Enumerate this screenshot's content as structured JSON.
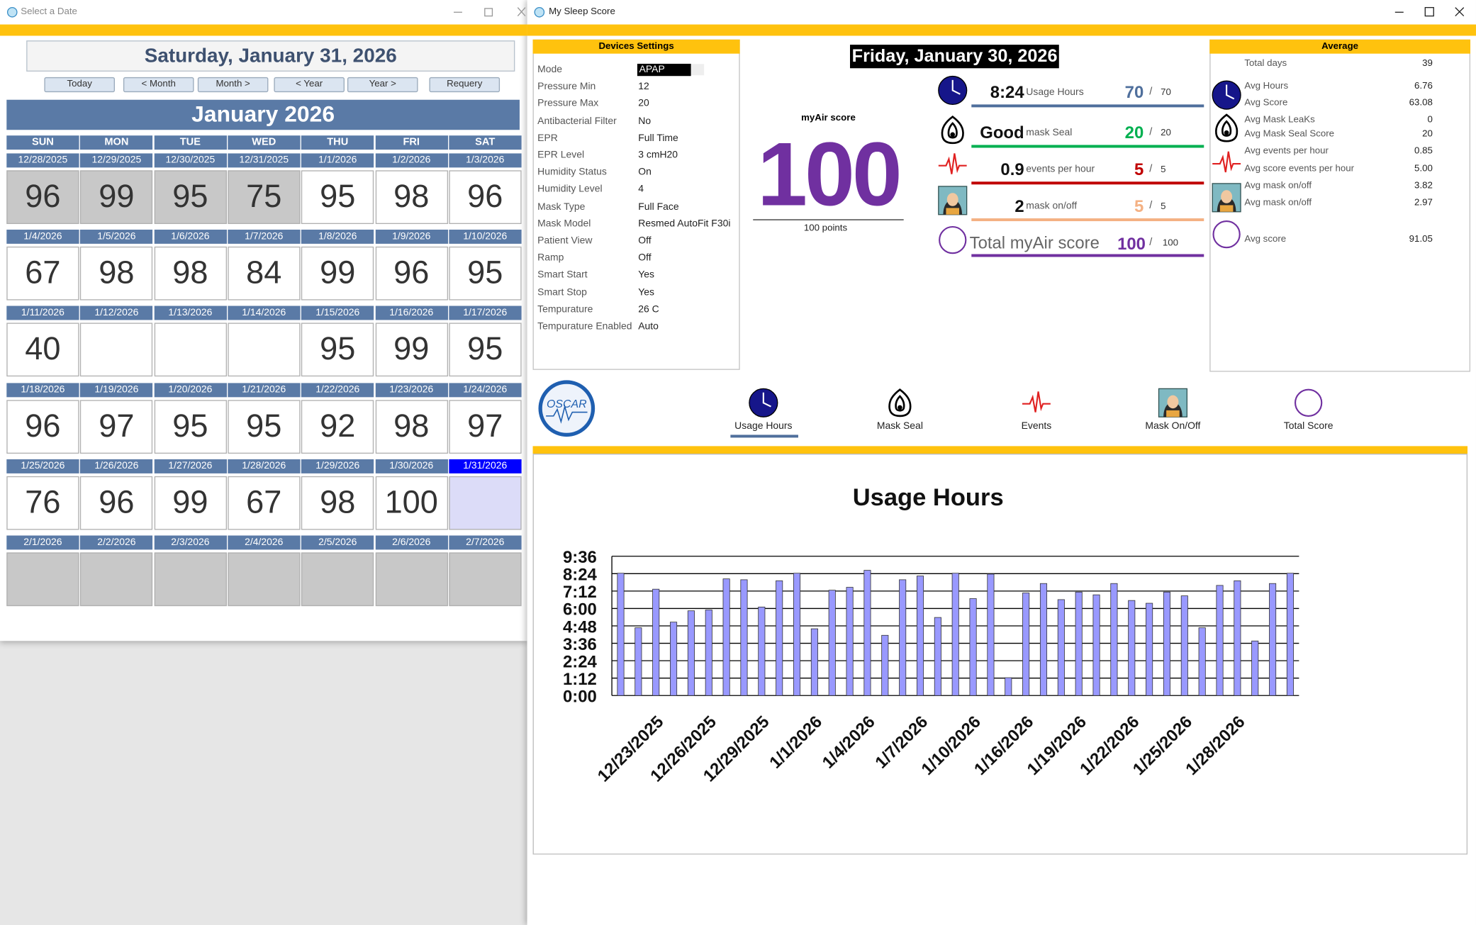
{
  "calendar_window": {
    "title": "Select a Date",
    "selected_date": "Saturday, January 31, 2026",
    "buttons": [
      "Today",
      "< Month",
      "Month >",
      "< Year",
      "Year >",
      "Requery"
    ],
    "month": "January 2026",
    "weekdays": [
      "SUN",
      "MON",
      "TUE",
      "WED",
      "THU",
      "FRI",
      "SAT"
    ],
    "weeks": [
      {
        "dates": [
          "12/28/2025",
          "12/29/2025",
          "12/30/2025",
          "12/31/2025",
          "1/1/2026",
          "1/2/2026",
          "1/3/2026"
        ],
        "scores": [
          96,
          99,
          95,
          75,
          95,
          98,
          96
        ]
      },
      {
        "dates": [
          "1/4/2026",
          "1/5/2026",
          "1/6/2026",
          "1/7/2026",
          "1/8/2026",
          "1/9/2026",
          "1/10/2026"
        ],
        "scores": [
          67,
          98,
          98,
          84,
          99,
          96,
          95
        ]
      },
      {
        "dates": [
          "1/11/2026",
          "1/12/2026",
          "1/13/2026",
          "1/14/2026",
          "1/15/2026",
          "1/16/2026",
          "1/17/2026"
        ],
        "scores": [
          40,
          null,
          null,
          null,
          95,
          99,
          95
        ]
      },
      {
        "dates": [
          "1/18/2026",
          "1/19/2026",
          "1/20/2026",
          "1/21/2026",
          "1/22/2026",
          "1/23/2026",
          "1/24/2026"
        ],
        "scores": [
          96,
          97,
          95,
          95,
          92,
          98,
          97
        ]
      },
      {
        "dates": [
          "1/25/2026",
          "1/26/2026",
          "1/27/2026",
          "1/28/2026",
          "1/29/2026",
          "1/30/2026",
          "1/31/2026"
        ],
        "scores": [
          76,
          96,
          99,
          67,
          98,
          100,
          null
        ]
      },
      {
        "dates": [
          "2/1/2026",
          "2/2/2026",
          "2/3/2026",
          "2/4/2026",
          "2/5/2026",
          "2/6/2026",
          "2/7/2026"
        ],
        "scores": [
          null,
          null,
          null,
          null,
          null,
          null,
          null
        ]
      }
    ]
  },
  "sleep_window": {
    "title": "My Sleep Score",
    "device_settings": {
      "title": "Devices Settings",
      "rows": [
        [
          "Mode",
          "APAP"
        ],
        [
          "Pressure Min",
          "12"
        ],
        [
          "Pressure Max",
          "20"
        ],
        [
          "Antibacterial Filter",
          "No"
        ],
        [
          "EPR",
          "Full Time"
        ],
        [
          "EPR Level",
          "3 cmH20"
        ],
        [
          "Humidity Status",
          "On"
        ],
        [
          "Humidity Level",
          "4"
        ],
        [
          "Mask Type",
          "Full Face"
        ],
        [
          "Mask Model",
          "Resmed AutoFit F30i"
        ],
        [
          "Patient View",
          "Off"
        ],
        [
          "Ramp",
          "Off"
        ],
        [
          "Smart Start",
          "Yes"
        ],
        [
          "Smart Stop",
          "Yes"
        ],
        [
          "Tempurature",
          "26 C"
        ],
        [
          "Tempurature Enabled",
          "Auto"
        ]
      ]
    },
    "score": {
      "date": "Friday, January 30, 2026",
      "label": "myAir score",
      "value": 100,
      "points": "100 points",
      "separator": "/",
      "rows": [
        {
          "value": "8:24",
          "unit": "Usage Hours",
          "score": 70,
          "max": 70
        },
        {
          "value": "Good",
          "unit": "mask Seal",
          "score": 20,
          "max": 20
        },
        {
          "value": 0.9,
          "unit": "events per hour",
          "score": 5,
          "max": 5
        },
        {
          "value": 2,
          "unit": "mask on/off",
          "score": 5,
          "max": 5
        }
      ],
      "total": {
        "label": "Total myAir score",
        "score": 100,
        "max": 100
      }
    },
    "average": {
      "title": "Average",
      "rows": [
        [
          "Total days",
          39
        ],
        [
          "Avg Hours",
          6.76
        ],
        [
          "Avg Score",
          63.08
        ],
        [
          "Avg Mask LeaKs",
          0
        ],
        [
          "Avg Mask Seal Score",
          20
        ],
        [
          "Avg events per hour",
          0.85
        ],
        [
          "Avg score events per hour",
          "5.00"
        ],
        [
          "Avg mask on/off",
          3.82
        ],
        [
          "Avg mask on/off",
          2.97
        ],
        [
          "Avg score",
          91.05
        ]
      ]
    },
    "logo": "OSCAR",
    "tabs": [
      "Usage Hours",
      "Mask Seal",
      "Events",
      "Mask On/Off",
      "Total Score"
    ]
  },
  "chart_data": {
    "type": "bar",
    "title": "Usage Hours",
    "categories": [
      null,
      null,
      "12/23/2025",
      null,
      null,
      "12/26/2025",
      null,
      null,
      "12/29/2025",
      null,
      null,
      "1/1/2026",
      null,
      null,
      "1/4/2026",
      null,
      null,
      "1/7/2026",
      null,
      null,
      "1/10/2026",
      null,
      null,
      "1/16/2026",
      null,
      null,
      "1/19/2026",
      null,
      null,
      "1/22/2026",
      null,
      null,
      "1/25/2026",
      null,
      null,
      "1/28/2026",
      null,
      null,
      null
    ],
    "values": [
      8.43,
      4.67,
      7.33,
      5.06,
      5.84,
      5.9,
      8.04,
      7.98,
      6.1,
      7.91,
      8.43,
      4.6,
      7.26,
      7.46,
      8.63,
      4.15,
      7.98,
      8.24,
      5.38,
      8.43,
      6.68,
      8.37,
      1.23,
      7.07,
      7.72,
      6.61,
      7.13,
      6.94,
      7.72,
      6.55,
      6.36,
      7.13,
      6.87,
      4.67,
      7.59,
      7.91,
      3.76,
      7.72,
      8.43
    ],
    "color": "#9999ff",
    "ylim": [
      0,
      9.6
    ],
    "yticks": [
      {
        "value": 0,
        "label": "0:00"
      },
      {
        "value": 1.2,
        "label": "1:12"
      },
      {
        "value": 2.4,
        "label": "2:24"
      },
      {
        "value": 3.6,
        "label": "3:36"
      },
      {
        "value": 4.8,
        "label": "4:48"
      },
      {
        "value": 6,
        "label": "6:00"
      },
      {
        "value": 7.2,
        "label": "7:12"
      },
      {
        "value": 8.4,
        "label": "8:24"
      },
      {
        "value": 9.6,
        "label": "9:36"
      }
    ],
    "grid": true
  }
}
